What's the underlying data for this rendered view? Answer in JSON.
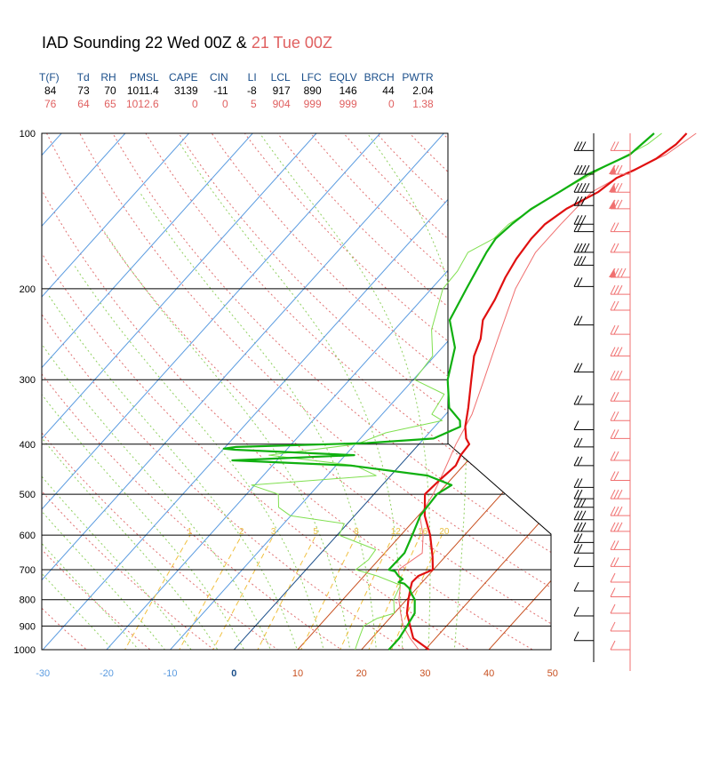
{
  "header": {
    "title_main": "IAD Sounding 22 Wed 00Z & ",
    "title_prev": "21 Tue 00Z"
  },
  "stats": {
    "columns": [
      "T(F)",
      "Td",
      "RH",
      "PMSL",
      "CAPE",
      "CIN",
      "LI",
      "LCL",
      "LFC",
      "EQLV",
      "BRCH",
      "PWTR"
    ],
    "current": [
      "84",
      "73",
      "70",
      "1011.4",
      "3139",
      "-11",
      "-8",
      "917",
      "890",
      "146",
      "44",
      "2.04"
    ],
    "previous": [
      "76",
      "64",
      "65",
      "1012.6",
      "0",
      "0",
      "5",
      "904",
      "999",
      "999",
      "0",
      "1.38"
    ]
  },
  "colors": {
    "current": "#e01010",
    "current_dew": "#10b010",
    "previous": "#f07070",
    "previous_dew": "#80e050",
    "isotherm": "#5a9be0",
    "dry_adiabat": "#e07070",
    "moist_adiabat": "#90d060",
    "mixing_ratio": "#f0c040"
  },
  "chart_data": {
    "type": "line",
    "x_axis": {
      "label": "",
      "range": [
        -30,
        50
      ],
      "ticks": [
        -30,
        -20,
        -10,
        0,
        10,
        20,
        30,
        40,
        50
      ],
      "tick_labels": [
        "-30",
        "-20",
        "-10",
        "0",
        "10",
        "20",
        "30",
        "40",
        "50"
      ]
    },
    "y_axis": {
      "label": "",
      "scale": "log",
      "range": [
        1000,
        100
      ],
      "ticks": [
        100,
        200,
        300,
        400,
        500,
        600,
        700,
        800,
        900,
        1000
      ],
      "tick_labels": [
        "100",
        "200",
        "300",
        "400",
        "500",
        "600",
        "700",
        "800",
        "900",
        "1000"
      ]
    },
    "mixing_ratio_labels": [
      "1",
      "2",
      "3",
      "5",
      "8",
      "12",
      "16",
      "20"
    ],
    "series": [
      {
        "name": "22 Wed 00Z",
        "points": [
          [
            1000,
            30.6
          ],
          [
            950,
            26.5
          ],
          [
            900,
            24.3
          ],
          [
            850,
            22
          ],
          [
            800,
            20.3
          ],
          [
            760,
            19
          ],
          [
            740,
            18.4
          ],
          [
            720,
            18.5
          ],
          [
            700,
            19.9
          ],
          [
            660,
            18
          ],
          [
            600,
            14.6
          ],
          [
            550,
            11
          ],
          [
            500,
            8
          ],
          [
            470,
            8.3
          ],
          [
            440,
            8.8
          ],
          [
            420,
            8.1
          ],
          [
            400,
            7.9
          ],
          [
            390,
            6.6
          ],
          [
            370,
            4.8
          ],
          [
            340,
            2.6
          ],
          [
            300,
            -0.9
          ],
          [
            270,
            -3.8
          ],
          [
            250,
            -5.2
          ],
          [
            230,
            -7.5
          ],
          [
            210,
            -8.5
          ],
          [
            190,
            -10
          ],
          [
            175,
            -10.9
          ],
          [
            160,
            -11.4
          ],
          [
            150,
            -11.3
          ],
          [
            140,
            -10.1
          ],
          [
            130,
            -7.5
          ],
          [
            122,
            -6.6
          ],
          [
            118,
            -5
          ],
          [
            112,
            -3.1
          ],
          [
            105,
            -2
          ],
          [
            100,
            -1.9
          ]
        ]
      },
      {
        "name": "22 Wed 00Z",
        "points": [
          [
            1000,
            24.3
          ],
          [
            950,
            24.3
          ],
          [
            900,
            23.8
          ],
          [
            850,
            23.2
          ],
          [
            800,
            21.3
          ],
          [
            780,
            20
          ],
          [
            760,
            18.8
          ],
          [
            745,
            17.4
          ],
          [
            740,
            16.3
          ],
          [
            730,
            16.5
          ],
          [
            720,
            15.4
          ],
          [
            705,
            14.2
          ],
          [
            700,
            13
          ],
          [
            650,
            13.1
          ],
          [
            600,
            11.8
          ],
          [
            550,
            10.3
          ],
          [
            500,
            9.9
          ],
          [
            480,
            10.9
          ],
          [
            460,
            5.8
          ],
          [
            440,
            -7.7
          ],
          [
            430,
            -27
          ],
          [
            420,
            -8.6
          ],
          [
            410,
            -28.1
          ],
          [
            408,
            -30
          ],
          [
            405,
            -28.3
          ],
          [
            398,
            -8.3
          ],
          [
            390,
            1.5
          ],
          [
            370,
            4
          ],
          [
            360,
            3.1
          ],
          [
            340,
            -0.4
          ],
          [
            300,
            -4.6
          ],
          [
            260,
            -8
          ],
          [
            230,
            -12.7
          ],
          [
            200,
            -14.5
          ],
          [
            180,
            -15.8
          ],
          [
            170,
            -16.5
          ],
          [
            160,
            -17
          ],
          [
            150,
            -16.5
          ],
          [
            140,
            -15.6
          ],
          [
            130,
            -13.6
          ],
          [
            120,
            -11.6
          ],
          [
            110,
            -7.8
          ],
          [
            100,
            -7
          ]
        ]
      },
      {
        "name": "21 Tue 00Z",
        "points": [
          [
            1000,
            29
          ],
          [
            950,
            26
          ],
          [
            900,
            23.2
          ],
          [
            850,
            21
          ],
          [
            800,
            18.8
          ],
          [
            750,
            17
          ],
          [
            700,
            14.5
          ],
          [
            650,
            15.9
          ],
          [
            600,
            13.5
          ],
          [
            550,
            10.2
          ],
          [
            500,
            9.3
          ],
          [
            450,
            7.7
          ],
          [
            400,
            5.8
          ],
          [
            350,
            4.1
          ],
          [
            300,
            1.1
          ],
          [
            250,
            -2.5
          ],
          [
            200,
            -6.8
          ],
          [
            170,
            -8.8
          ],
          [
            150,
            -8.8
          ],
          [
            130,
            -8.5
          ],
          [
            120,
            -6
          ],
          [
            110,
            -2.1
          ],
          [
            100,
            -0.4
          ]
        ]
      },
      {
        "name": "21 Tue 00Z",
        "points": [
          [
            1000,
            19
          ],
          [
            950,
            18
          ],
          [
            900,
            17
          ],
          [
            870,
            18
          ],
          [
            850,
            20
          ],
          [
            800,
            18
          ],
          [
            750,
            17
          ],
          [
            720,
            12.1
          ],
          [
            700,
            7.8
          ],
          [
            670,
            8.4
          ],
          [
            640,
            8.1
          ],
          [
            600,
            0.3
          ],
          [
            570,
            -0.5
          ],
          [
            550,
            -10.1
          ],
          [
            530,
            -13.1
          ],
          [
            500,
            -15
          ],
          [
            480,
            -20.5
          ],
          [
            460,
            -2.3
          ],
          [
            440,
            -7
          ],
          [
            420,
            -22
          ],
          [
            400,
            -9.8
          ],
          [
            380,
            -6.8
          ],
          [
            360,
            0.3
          ],
          [
            350,
            -2.2
          ],
          [
            320,
            -3.1
          ],
          [
            300,
            -9.8
          ],
          [
            270,
            -10.3
          ],
          [
            240,
            -14.2
          ],
          [
            200,
            -18.2
          ],
          [
            185,
            -18.4
          ],
          [
            170,
            -19.4
          ],
          [
            160,
            -17.3
          ],
          [
            150,
            -17
          ],
          [
            130,
            -13.6
          ],
          [
            115,
            -9.7
          ],
          [
            105,
            -6.5
          ],
          [
            100,
            -5.8
          ]
        ]
      }
    ]
  }
}
